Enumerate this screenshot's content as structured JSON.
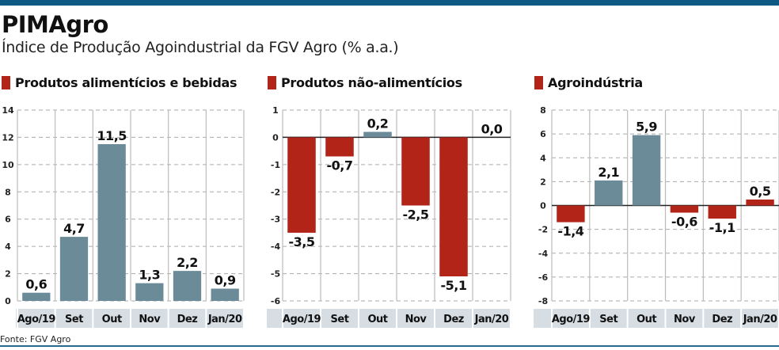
{
  "header": {
    "title": "PIMAgro",
    "subtitle": "Índice de Produção Agoindustrial da FGV Agro (% a.a.)"
  },
  "source": "Fonte: FGV Agro",
  "colors": {
    "positive": "#6b8b99",
    "negative": "#b22418",
    "band": "#d6dee4",
    "topbar": "#0e5a85"
  },
  "chart_data": [
    {
      "type": "bar",
      "title": "Produtos alimentícios e bebidas",
      "categories": [
        "Ago/19",
        "Set",
        "Out",
        "Nov",
        "Dez",
        "Jan/20"
      ],
      "values": [
        0.6,
        4.7,
        11.5,
        1.3,
        2.2,
        0.9
      ],
      "labels": [
        "0,6",
        "4,7",
        "11,5",
        "1,3",
        "2,2",
        "0,9"
      ],
      "bar_colors": [
        "#6b8b99",
        "#6b8b99",
        "#6b8b99",
        "#6b8b99",
        "#6b8b99",
        "#6b8b99"
      ],
      "ylim": [
        0,
        14
      ],
      "yticks": [
        0,
        2,
        4,
        6,
        8,
        10,
        12,
        14
      ],
      "grid": true
    },
    {
      "type": "bar",
      "title": "Produtos não-alimentícios",
      "categories": [
        "Ago/19",
        "Set",
        "Out",
        "Nov",
        "Dez",
        "Jan/20"
      ],
      "values": [
        -3.5,
        -0.7,
        0.2,
        -2.5,
        -5.1,
        0.0
      ],
      "labels": [
        "-3,5",
        "-0,7",
        "0,2",
        "-2,5",
        "-5,1",
        "0,0"
      ],
      "bar_colors": [
        "#b22418",
        "#b22418",
        "#6b8b99",
        "#b22418",
        "#b22418",
        "#b22418"
      ],
      "ylim": [
        -6,
        1
      ],
      "yticks": [
        -6,
        -5,
        -4,
        -3,
        -2,
        -1,
        0,
        1
      ],
      "grid": true
    },
    {
      "type": "bar",
      "title": "Agroindústria",
      "categories": [
        "Ago/19",
        "Set",
        "Out",
        "Nov",
        "Dez",
        "Jan/20"
      ],
      "values": [
        -1.4,
        2.1,
        5.9,
        -0.6,
        -1.1,
        0.5
      ],
      "labels": [
        "-1,4",
        "2,1",
        "5,9",
        "-0,6",
        "-1,1",
        "0,5"
      ],
      "bar_colors": [
        "#b22418",
        "#6b8b99",
        "#6b8b99",
        "#b22418",
        "#b22418",
        "#b22418"
      ],
      "ylim": [
        -8,
        8
      ],
      "yticks": [
        -8,
        -6,
        -4,
        -2,
        0,
        2,
        4,
        6,
        8
      ],
      "grid": true
    }
  ]
}
